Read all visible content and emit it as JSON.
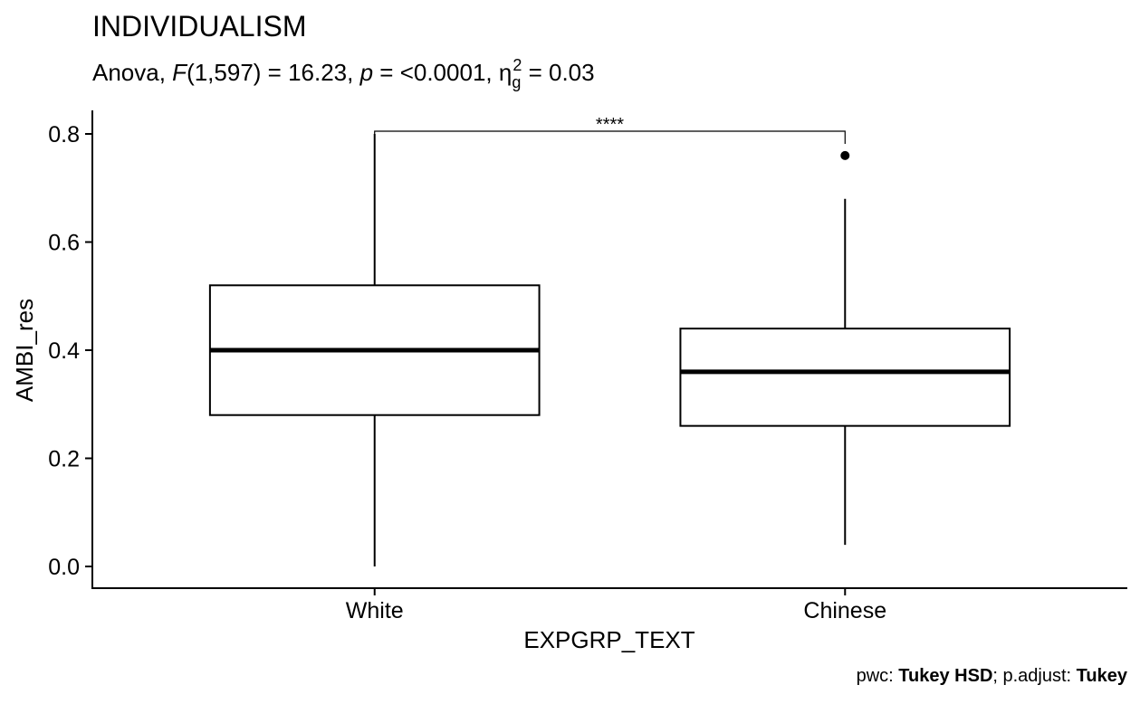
{
  "chart_data": {
    "type": "box",
    "title": "INDIVIDUALISM",
    "subtitle": {
      "prefix": "Anova, ",
      "F_symbol": "F",
      "F_args": "(1,597) = 16.23, ",
      "p_symbol": "p",
      "p_value": " = <0.0001, ",
      "eta_symbol": "η",
      "eta_sub": "g",
      "eta_sup": "2",
      "eta_value": " = 0.03"
    },
    "xlabel": "EXPGRP_TEXT",
    "ylabel": "AMBI_res",
    "ylim": [
      -0.04,
      0.84
    ],
    "yticks": [
      0.0,
      0.2,
      0.4,
      0.6,
      0.8
    ],
    "ytick_labels": [
      "0.0",
      "0.2",
      "0.4",
      "0.6",
      "0.8"
    ],
    "categories": [
      "White",
      "Chinese"
    ],
    "boxes": [
      {
        "category": "White",
        "min": 0.0,
        "q1": 0.28,
        "median": 0.4,
        "q3": 0.52,
        "max": 0.8,
        "outliers": []
      },
      {
        "category": "Chinese",
        "min": 0.04,
        "q1": 0.26,
        "median": 0.36,
        "q3": 0.44,
        "max": 0.68,
        "outliers": [
          0.76
        ]
      }
    ],
    "comparison": {
      "from": "White",
      "to": "Chinese",
      "y": 0.805,
      "label": "****"
    },
    "caption": {
      "pwc_label": "pwc: ",
      "pwc_value": "Tukey HSD",
      "separator": "; p.adjust: ",
      "adjust_value": "Tukey"
    },
    "grid": false,
    "legend": "none"
  }
}
